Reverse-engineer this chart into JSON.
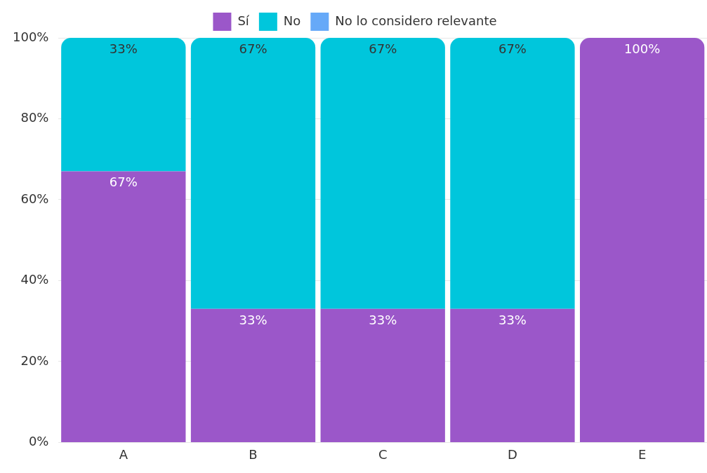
{
  "chart_data": {
    "type": "bar",
    "stacked": true,
    "categories": [
      "A",
      "B",
      "C",
      "D",
      "E"
    ],
    "series": [
      {
        "name": "Sí",
        "color": "#9b57c9",
        "values": [
          67,
          33,
          33,
          33,
          100
        ],
        "value_labels": [
          "67%",
          "33%",
          "33%",
          "33%",
          "100%"
        ]
      },
      {
        "name": "No",
        "color": "#00c6dc",
        "values": [
          33,
          67,
          67,
          67,
          0
        ],
        "value_labels": [
          "33%",
          "67%",
          "67%",
          "67%",
          null
        ]
      },
      {
        "name": "No lo considero relevante",
        "color": "#66a9f8",
        "values": [
          0,
          0,
          0,
          0,
          0
        ],
        "value_labels": [
          null,
          null,
          null,
          null,
          null
        ]
      }
    ],
    "ylim": [
      0,
      100
    ],
    "yticks": [
      {
        "value": 0,
        "label": "0%"
      },
      {
        "value": 20,
        "label": "20%"
      },
      {
        "value": 40,
        "label": "40%"
      },
      {
        "value": 60,
        "label": "60%"
      },
      {
        "value": 80,
        "label": "80%"
      },
      {
        "value": 100,
        "label": "100%"
      }
    ],
    "grid": "y",
    "legend": "top"
  }
}
